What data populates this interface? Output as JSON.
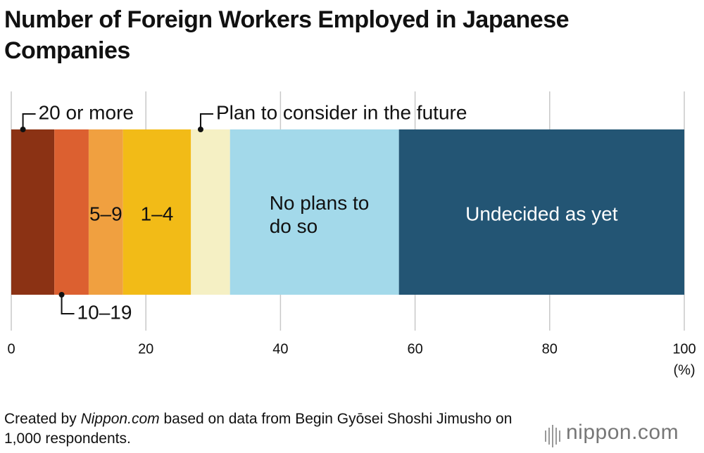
{
  "chart_data": {
    "type": "stacked-bar",
    "title": "Number of Foreign Workers Employed in Japanese Companies",
    "series": [
      {
        "name": "20 or more",
        "color": "#8b3214",
        "values": [
          6.4
        ]
      },
      {
        "name": "10–19",
        "color": "#dc6030",
        "values": [
          5.1
        ]
      },
      {
        "name": "5–9",
        "color": "#f0a040",
        "values": [
          5.1
        ]
      },
      {
        "name": "1–4",
        "color": "#f2bb17",
        "values": [
          10.1
        ]
      },
      {
        "name": "Plan to consider in the future",
        "color": "#f5f0c4",
        "values": [
          5.8
        ]
      },
      {
        "name": "No plans to do so",
        "color": "#a3d9ea",
        "values": [
          25.1
        ]
      },
      {
        "name": "Undecided as yet",
        "color": "#235574",
        "values": [
          42.4
        ]
      }
    ],
    "xlim": [
      0,
      100
    ],
    "xticks": [
      0,
      20,
      40,
      60,
      80,
      100
    ],
    "x_unit": "(%)",
    "grid": true,
    "source_prefix": "Created by ",
    "source_publisher": "Nippon.com",
    "source_suffix": " based on data from Begin Gyōsei Shoshi Jimusho on 1,000 respondents.",
    "logo": "nippon.com"
  }
}
